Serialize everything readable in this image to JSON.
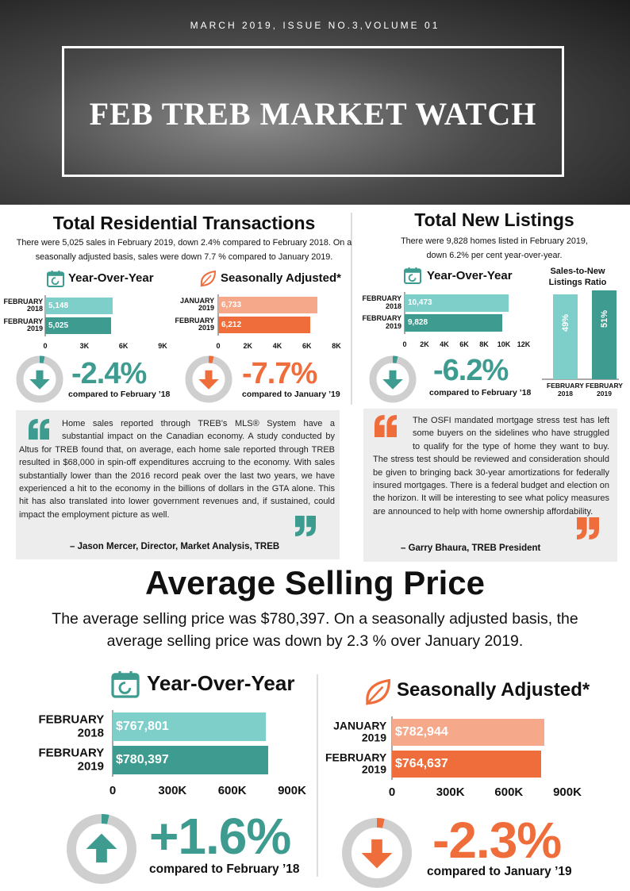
{
  "header": {
    "issue": "MARCH 2019, ISSUE NO.3,VOLUME 01",
    "title": "FEB TREB MARKET WATCH"
  },
  "sections": [
    {
      "title": "Total Residential Transactions",
      "description": "There were 5,025 sales in February 2019, down 2.4% compared to February 2018. On a seasonally adjusted basis, sales were down 7.7 % compared to January 2019."
    },
    {
      "title": "Total New Listings",
      "description": "There were 9,828 homes listed in February 2019, down 6.2% per cent year-over-year."
    },
    {
      "title": "Average Selling Price",
      "description": "The average selling price was $780,397. On a seasonally adjusted basis, the average selling price was down by 2.3 % over January 2019."
    }
  ],
  "quotes": [
    {
      "text": "Home sales reported through TREB’s MLS® System have a substantial impact on the Canadian economy. A study conducted by Altus for TREB found that, on average, each home sale reported through TREB resulted in $68,000 in spin-off expenditures accruing to the economy. With sales substantially lower than the 2016 record peak over the last two years, we have experienced a hit to the economy in the billions of dollars in the GTA alone. This hit has also translated into lower government revenues and, if sustained, could impact the employment picture as well.",
      "author": "– Jason Mercer, Director, Market Analysis, TREB"
    },
    {
      "text": "The OSFI mandated mortgage stress test has left some buyers on the sidelines who have struggled to qualify for the type of home they want to buy. The stress test should be reviewed and consideration should be given to bringing back 30-year amortizations for federally insured mortgages. There is a federal budget and election on the horizon. It will be interesting to see what policy measures are announced to help with home ownership affordability.",
      "author": "– Garry Bhaura, TREB President"
    }
  ],
  "chart_data": [
    {
      "type": "hbar",
      "icon": "calendar",
      "title": "Year-Over-Year",
      "categories": [
        "FEBRUARY 2018",
        "FEBRUARY 2019"
      ],
      "values": [
        5148,
        5025
      ],
      "value_labels": [
        "5,148",
        "5,025"
      ],
      "colors": [
        "#7ecfc9",
        "#3d9c8f"
      ],
      "xlim": [
        0,
        9000
      ],
      "xticks": [
        0,
        {
          "value": 3000,
          "label": "3K"
        },
        {
          "value": 6000,
          "label": "6K"
        },
        {
          "value": 9000,
          "label": "9K"
        }
      ],
      "change": "-2.4%",
      "direction": "down",
      "change_color": "#3d9c8f",
      "comparison": "compared to February ’18"
    },
    {
      "type": "hbar",
      "icon": "leaf",
      "title": "Seasonally Adjusted*",
      "categories": [
        "JANUARY 2019",
        "FEBRUARY 2019"
      ],
      "values": [
        6733,
        6212
      ],
      "value_labels": [
        "6,733",
        "6,212"
      ],
      "colors": [
        "#f5a98a",
        "#ef6d3b"
      ],
      "xlim": [
        0,
        8000
      ],
      "xticks": [
        0,
        {
          "value": 2000,
          "label": "2K"
        },
        {
          "value": 4000,
          "label": "4K"
        },
        {
          "value": 6000,
          "label": "6K"
        },
        {
          "value": 8000,
          "label": "8K"
        }
      ],
      "change": "-7.7%",
      "direction": "down",
      "change_color": "#ef6d3b",
      "comparison": "compared to January ’19"
    },
    {
      "type": "hbar",
      "icon": "calendar",
      "title": "Year-Over-Year",
      "categories": [
        "FEBRUARY 2018",
        "FEBRUARY 2019"
      ],
      "values": [
        10473,
        9828
      ],
      "value_labels": [
        "10,473",
        "9,828"
      ],
      "colors": [
        "#7ecfc9",
        "#3d9c8f"
      ],
      "xlim": [
        0,
        12000
      ],
      "xticks": [
        0,
        {
          "value": 2000,
          "label": "2K"
        },
        {
          "value": 4000,
          "label": "4K"
        },
        {
          "value": 6000,
          "label": "6K"
        },
        {
          "value": 8000,
          "label": "8K"
        },
        {
          "value": 10000,
          "label": "10K"
        },
        {
          "value": 12000,
          "label": "12K"
        }
      ],
      "change": "-6.2%",
      "direction": "down",
      "change_color": "#3d9c8f",
      "comparison": "compared to February ’18"
    },
    {
      "type": "vbar",
      "title": "Sales-to-New Listings Ratio",
      "categories": [
        "FEBRUARY 2018",
        "FEBRUARY 2019"
      ],
      "values": [
        49,
        51
      ],
      "value_labels": [
        "49%",
        "51%"
      ],
      "colors": [
        "#7ecfc9",
        "#3d9c8f"
      ],
      "ylim": [
        0,
        52
      ]
    },
    {
      "type": "hbar",
      "icon": "calendar",
      "title": "Year-Over-Year",
      "categories": [
        "FEBRUARY 2018",
        "FEBRUARY 2019"
      ],
      "values": [
        767801,
        780397
      ],
      "value_labels": [
        "$767,801",
        "$780,397"
      ],
      "colors": [
        "#7ecfc9",
        "#3d9c8f"
      ],
      "xlim": [
        0,
        900000
      ],
      "xticks": [
        0,
        {
          "value": 300000,
          "label": "300K"
        },
        {
          "value": 600000,
          "label": "600K"
        },
        {
          "value": 900000,
          "label": "900K"
        }
      ],
      "change": "+1.6%",
      "direction": "up",
      "change_color": "#3d9c8f",
      "comparison": "compared to February ’18"
    },
    {
      "type": "hbar",
      "icon": "leaf",
      "title": "Seasonally Adjusted*",
      "categories": [
        "JANUARY 2019",
        "FEBRUARY 2019"
      ],
      "values": [
        782944,
        764637
      ],
      "value_labels": [
        "$782,944",
        "$764,637"
      ],
      "colors": [
        "#f5a98a",
        "#ef6d3b"
      ],
      "xlim": [
        0,
        900000
      ],
      "xticks": [
        0,
        {
          "value": 300000,
          "label": "300K"
        },
        {
          "value": 600000,
          "label": "600K"
        },
        {
          "value": 900000,
          "label": "900K"
        }
      ],
      "change": "-2.3%",
      "direction": "down",
      "change_color": "#ef6d3b",
      "comparison": "compared to January ’19"
    }
  ]
}
